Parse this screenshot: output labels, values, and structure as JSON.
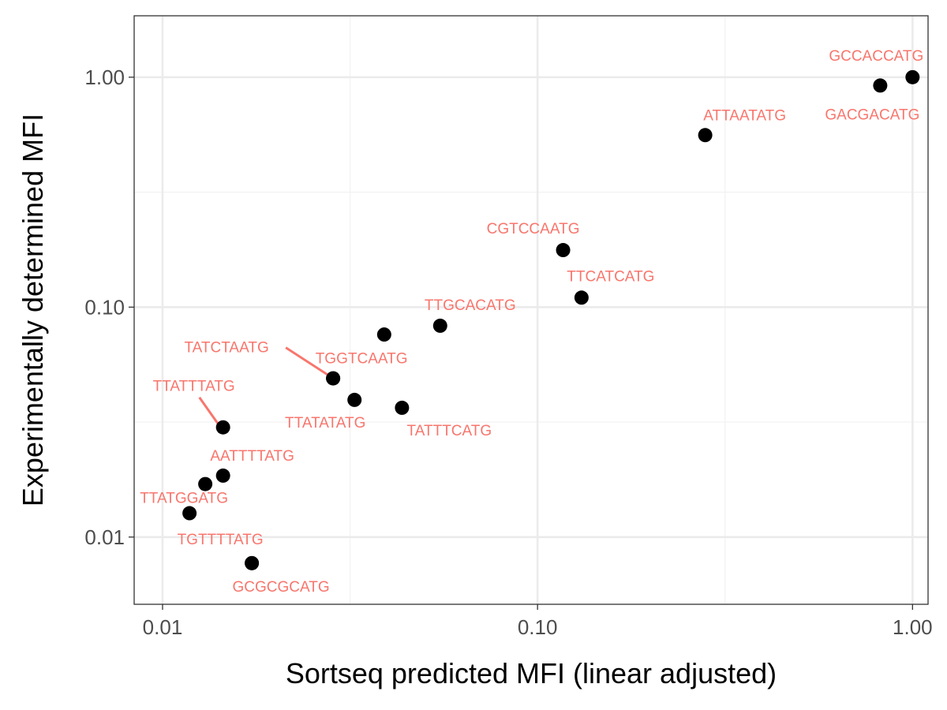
{
  "chart_data": {
    "type": "scatter",
    "title": "",
    "xlabel": "Sortseq predicted MFI (linear adjusted)",
    "ylabel": "Experimentally determined MFI",
    "x_scale": "log10",
    "y_scale": "log10",
    "xlim": [
      0.0084,
      1.1
    ],
    "ylim": [
      0.0051,
      1.85
    ],
    "x_ticks": [
      {
        "value": 0.01,
        "label": "0.01"
      },
      {
        "value": 0.1,
        "label": "0.10"
      },
      {
        "value": 1.0,
        "label": "1.00"
      }
    ],
    "y_ticks": [
      {
        "value": 0.01,
        "label": "0.01"
      },
      {
        "value": 0.1,
        "label": "0.10"
      },
      {
        "value": 1.0,
        "label": "1.00"
      }
    ],
    "grid": true,
    "point_color": "#000000",
    "label_color": "#F8766D",
    "points": [
      {
        "label": "GCCACCATG",
        "x": 1.0,
        "y": 1.0
      },
      {
        "label": "GACGACATG",
        "x": 0.82,
        "y": 0.92
      },
      {
        "label": "ATTAATATG",
        "x": 0.28,
        "y": 0.56
      },
      {
        "label": "CGTCCAATG",
        "x": 0.117,
        "y": 0.177
      },
      {
        "label": "TTCATCATG",
        "x": 0.131,
        "y": 0.11
      },
      {
        "label": "TTGCACATG",
        "x": 0.055,
        "y": 0.083
      },
      {
        "label": "",
        "x": 0.039,
        "y": 0.076
      },
      {
        "label": "TGGTCAATG",
        "x": 0.0285,
        "y": 0.049
      },
      {
        "label": "TATCTAATG",
        "x": 0.0285,
        "y": 0.049
      },
      {
        "label": "TTATATATG",
        "x": 0.0325,
        "y": 0.0395
      },
      {
        "label": "TATTTCATG",
        "x": 0.0435,
        "y": 0.0365
      },
      {
        "label": "TTATTTATG",
        "x": 0.0145,
        "y": 0.03
      },
      {
        "label": "AATTTTATG",
        "x": 0.0145,
        "y": 0.0185
      },
      {
        "label": "",
        "x": 0.013,
        "y": 0.017
      },
      {
        "label": "TTATGGATG",
        "x": 0.0118,
        "y": 0.0127
      },
      {
        "label": "TGTTTTATG",
        "x": 0.0173,
        "y": 0.0077
      },
      {
        "label": "GCGCGCATG",
        "x": 0.0173,
        "y": 0.0077
      }
    ]
  }
}
